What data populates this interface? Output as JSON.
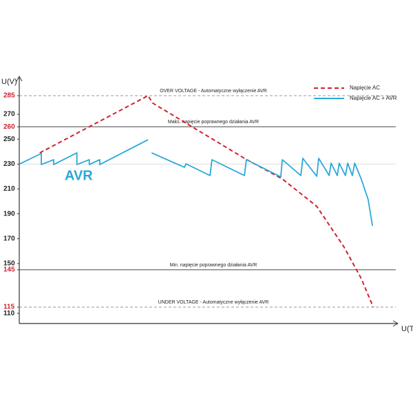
{
  "chart_data": {
    "type": "line",
    "y_label": "U(V)",
    "x_label": "U(T)",
    "annotation": "AVR",
    "annotation_color": "#29a8d8",
    "highlight_color": "#d0202e",
    "xlim": [
      0,
      100
    ],
    "ylim": [
      100,
      300
    ],
    "yticks": [
      285,
      270,
      260,
      250,
      230,
      210,
      190,
      170,
      150,
      145,
      115,
      110
    ],
    "reference_lines": [
      {
        "value": 285,
        "style": "dashed",
        "color": "#999999",
        "label": "OVER VOLTAGE - Automatyczne wyłączenie AVR",
        "highlight": true
      },
      {
        "value": 260,
        "style": "solid",
        "color": "#444444",
        "label": "Maks. napięcie poprawnego działania AVR",
        "highlight": true
      },
      {
        "value": 230,
        "style": "solid",
        "color": "#dddddd"
      },
      {
        "value": 145,
        "style": "solid",
        "color": "#444444",
        "label": "Min. napięcie poprawnego działania AVR",
        "highlight": true
      },
      {
        "value": 115,
        "style": "dashed",
        "color": "#999999",
        "label": "UNDER VOLTAGE - Automatyczne wyłączenie AVR",
        "highlight": true
      }
    ],
    "series": [
      {
        "name": "Napięcie AC",
        "color": "#d0202e",
        "style": "dashed",
        "x": [
          5.3,
          33.3,
          34.5,
          58.2,
          68,
          76.9,
          84,
          88.4,
          91.5
        ],
        "values": [
          239,
          285,
          279,
          234.6,
          218,
          196,
          163,
          138,
          115
        ]
      },
      {
        "name": "Napięcie AC  + AVR",
        "color": "#29a8d8",
        "style": "solid",
        "x": [
          0,
          5.7,
          5.7,
          8.9,
          8.9,
          14.9,
          14.9,
          18.1,
          18.1,
          20.8,
          20.8,
          33.3,
          null,
          34.2,
          42.7,
          43.1,
          49.3,
          49.8,
          58.2,
          58.7,
          67.6,
          68,
          72.8,
          73.3,
          76.9,
          77.4,
          80.1,
          80.6,
          82.2,
          82.7,
          84.3,
          84.9,
          86.1,
          86.7,
          88.4,
          90.2,
          91.3
        ],
        "values": [
          230,
          238.5,
          229.6,
          233.5,
          229.6,
          239,
          229.6,
          233.5,
          229.6,
          233.5,
          229.6,
          249.6,
          null,
          239,
          227.4,
          230.2,
          220.8,
          233.5,
          220.8,
          233.5,
          219.7,
          233.5,
          220.8,
          234.6,
          220.2,
          234.6,
          220.8,
          230.7,
          220.8,
          230.7,
          220.8,
          230.7,
          220.8,
          230.7,
          218,
          201.4,
          180.3
        ]
      }
    ]
  }
}
